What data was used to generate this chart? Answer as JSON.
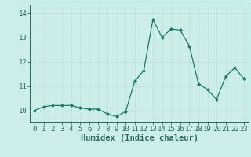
{
  "x": [
    0,
    1,
    2,
    3,
    4,
    5,
    6,
    7,
    8,
    9,
    10,
    11,
    12,
    13,
    14,
    15,
    16,
    17,
    18,
    19,
    20,
    21,
    22,
    23
  ],
  "y": [
    10.0,
    10.15,
    10.2,
    10.2,
    10.2,
    10.1,
    10.05,
    10.05,
    9.85,
    9.75,
    9.95,
    11.2,
    11.65,
    13.75,
    13.0,
    13.35,
    13.3,
    12.65,
    11.1,
    10.85,
    10.45,
    11.4,
    11.75,
    11.3
  ],
  "bg_color": "#cceee8",
  "grid_color": "#c8e0da",
  "line_color": "#1a7a6e",
  "marker_color": "#1a7a6e",
  "xlabel": "Humidex (Indice chaleur)",
  "ylim_min": 9.5,
  "ylim_max": 14.35,
  "xlim_min": -0.5,
  "xlim_max": 23.5,
  "yticks": [
    10,
    11,
    12,
    13,
    14
  ],
  "xticks": [
    0,
    1,
    2,
    3,
    4,
    5,
    6,
    7,
    8,
    9,
    10,
    11,
    12,
    13,
    14,
    15,
    16,
    17,
    18,
    19,
    20,
    21,
    22,
    23
  ],
  "tick_color": "#2a6a60",
  "xlabel_fontsize": 7.5,
  "tick_fontsize": 6.5
}
